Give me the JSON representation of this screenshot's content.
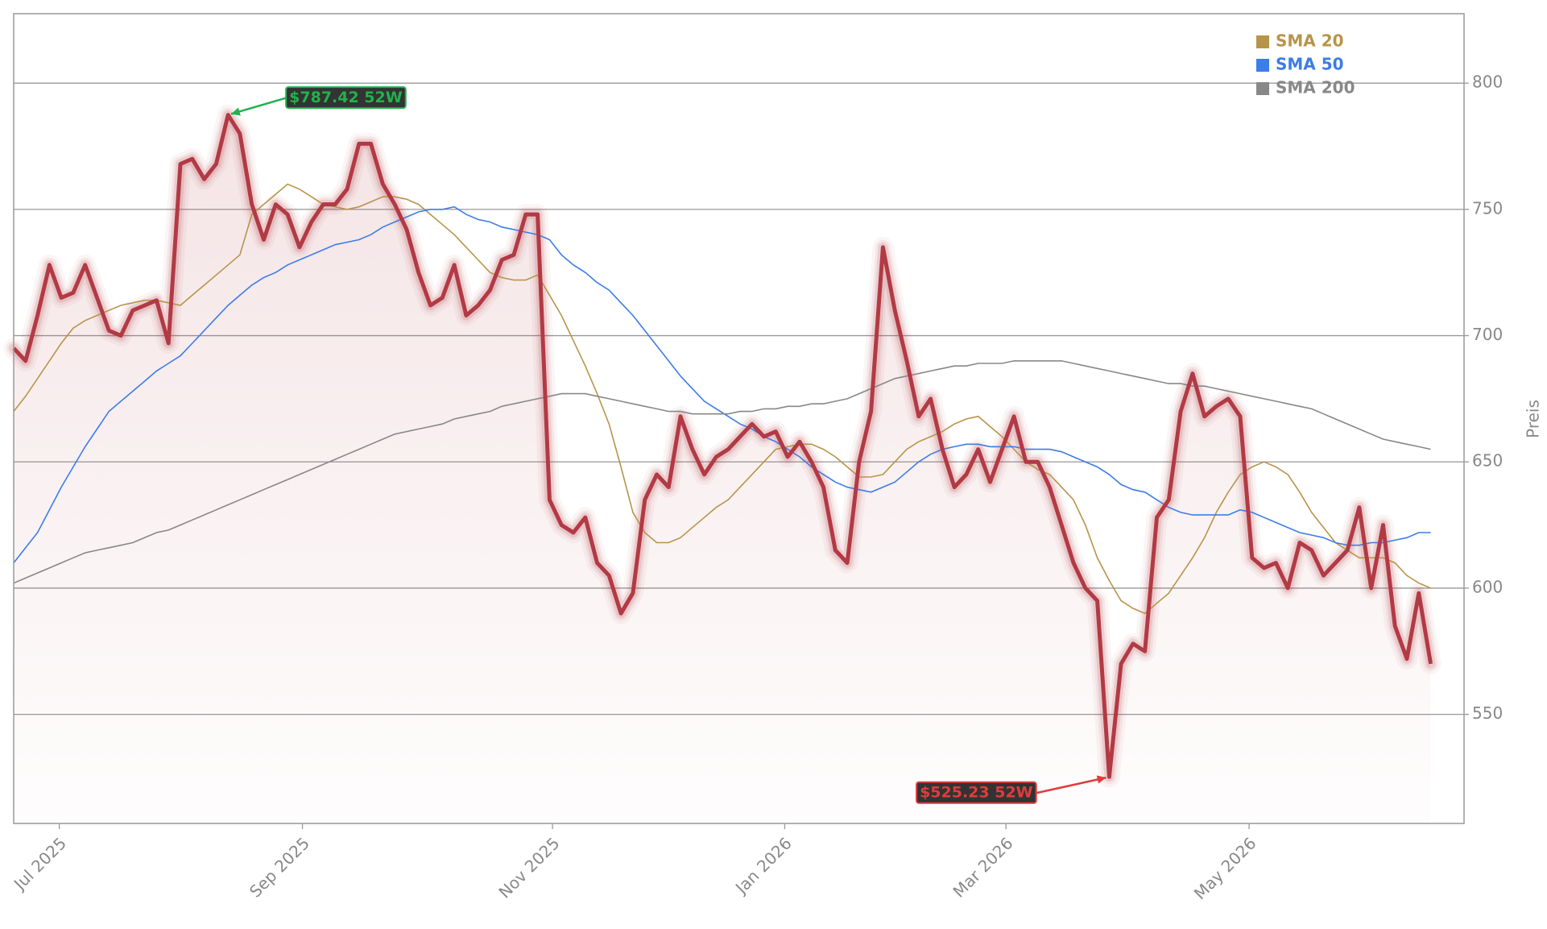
{
  "chart_data": {
    "type": "line",
    "y_label": "Preis",
    "xlim": [
      0,
      121.8
    ],
    "xticks": [
      {
        "value": 3.83,
        "label": "Jul 2025"
      },
      {
        "value": 24.25,
        "label": "Sep 2025"
      },
      {
        "value": 45.25,
        "label": "Nov 2025"
      },
      {
        "value": 64.75,
        "label": "Jan 2026"
      },
      {
        "value": 83.33,
        "label": "Mar 2026"
      },
      {
        "value": 103.75,
        "label": "May 2026"
      }
    ],
    "ylim": [
      506.8,
      827.5
    ],
    "yticks": [
      550,
      600,
      650,
      700,
      750,
      800
    ],
    "grid": true,
    "legend": "upper right",
    "price": {
      "color": "#b23a44",
      "values": [
        695,
        690,
        708,
        728,
        715,
        717,
        728,
        715,
        702,
        700,
        710,
        712,
        714,
        697,
        768,
        770,
        762,
        768,
        787.42,
        780,
        752,
        738,
        752,
        748,
        735,
        745,
        752,
        752,
        758,
        776,
        776,
        760,
        752,
        742,
        725,
        712,
        715,
        728,
        708,
        712,
        718,
        730,
        732,
        748,
        748,
        635,
        625,
        622,
        628,
        610,
        605,
        590,
        598,
        635,
        645,
        640,
        668,
        655,
        645,
        652,
        655,
        660,
        665,
        660,
        662,
        652,
        658,
        650,
        640,
        615,
        610,
        650,
        670,
        735,
        710,
        690,
        668,
        675,
        655,
        640,
        645,
        655,
        642,
        655,
        668,
        650,
        650,
        640,
        625,
        610,
        600,
        595,
        525.23,
        570,
        578,
        575,
        628,
        635,
        670,
        685,
        668,
        672,
        675,
        668,
        612,
        608,
        610,
        600,
        618,
        615,
        605,
        610,
        615,
        632,
        600,
        625,
        585,
        572,
        598,
        570
      ]
    },
    "series": [
      {
        "name": "SMA 20",
        "color": "#b8944a",
        "values": [
          670,
          676,
          683,
          690,
          697,
          703,
          706,
          708,
          710,
          712,
          713,
          714,
          714,
          713,
          712,
          716,
          720,
          724,
          728,
          732,
          748,
          752,
          756,
          760,
          758,
          755,
          752,
          751,
          750,
          751,
          753,
          755,
          755,
          754,
          752,
          748,
          744,
          740,
          735,
          730,
          725,
          723,
          722,
          722,
          724,
          716,
          708,
          698,
          688,
          677,
          665,
          648,
          630,
          622,
          618,
          618,
          620,
          624,
          628,
          632,
          635,
          640,
          645,
          650,
          655,
          656,
          657,
          657,
          655,
          652,
          648,
          644,
          644,
          645,
          650,
          655,
          658,
          660,
          662,
          665,
          667,
          668,
          664,
          660,
          655,
          650,
          647,
          645,
          640,
          635,
          625,
          612,
          603,
          595,
          592,
          590,
          594,
          598,
          605,
          612,
          620,
          630,
          638,
          645,
          648,
          650,
          648,
          645,
          638,
          630,
          624,
          618,
          615,
          612,
          612,
          612,
          610,
          605,
          602,
          600
        ]
      },
      {
        "name": "SMA 50",
        "color": "#3b7de9",
        "values": [
          610,
          616,
          622,
          631,
          640,
          648,
          656,
          663,
          670,
          674,
          678,
          682,
          686,
          689,
          692,
          697,
          702,
          707,
          712,
          716,
          720,
          723,
          725,
          728,
          730,
          732,
          734,
          736,
          737,
          738,
          740,
          743,
          745,
          747,
          749,
          750,
          750,
          751,
          748,
          746,
          745,
          743,
          742,
          741,
          740,
          738,
          732,
          728,
          725,
          721,
          718,
          713,
          708,
          702,
          696,
          690,
          684,
          679,
          674,
          671,
          668,
          665,
          663,
          660,
          658,
          655,
          652,
          648,
          645,
          642,
          640,
          639,
          638,
          640,
          642,
          646,
          650,
          653,
          655,
          656,
          657,
          657,
          656,
          656,
          656,
          655,
          655,
          655,
          654,
          652,
          650,
          648,
          645,
          641,
          639,
          638,
          635,
          632,
          630,
          629,
          629,
          629,
          629,
          631,
          630,
          628,
          626,
          624,
          622,
          621,
          620,
          618,
          617,
          617,
          618,
          618,
          619,
          620,
          622,
          622
        ]
      },
      {
        "name": "SMA 200",
        "color": "#888888",
        "values": [
          602,
          604,
          606,
          608,
          610,
          612,
          614,
          615,
          616,
          617,
          618,
          620,
          622,
          623,
          625,
          627,
          629,
          631,
          633,
          635,
          637,
          639,
          641,
          643,
          645,
          647,
          649,
          651,
          653,
          655,
          657,
          659,
          661,
          662,
          663,
          664,
          665,
          667,
          668,
          669,
          670,
          672,
          673,
          674,
          675,
          676,
          677,
          677,
          677,
          676,
          675,
          674,
          673,
          672,
          671,
          670,
          670,
          669,
          669,
          669,
          669,
          670,
          670,
          671,
          671,
          672,
          672,
          673,
          673,
          674,
          675,
          677,
          679,
          681,
          683,
          684,
          685,
          686,
          687,
          688,
          688,
          689,
          689,
          689,
          690,
          690,
          690,
          690,
          690,
          689,
          688,
          687,
          686,
          685,
          684,
          683,
          682,
          681,
          681,
          680,
          680,
          679,
          678,
          677,
          676,
          675,
          674,
          673,
          672,
          671,
          669,
          667,
          665,
          663,
          661,
          659,
          658,
          657,
          656,
          655
        ]
      }
    ],
    "annotations": [
      {
        "text": "$787.42 52W",
        "x": 18,
        "y": 787.42,
        "color": "#22b14c"
      },
      {
        "text": "$525.23 52W",
        "x": 92,
        "y": 525.23,
        "color": "#e03c3c"
      }
    ]
  }
}
